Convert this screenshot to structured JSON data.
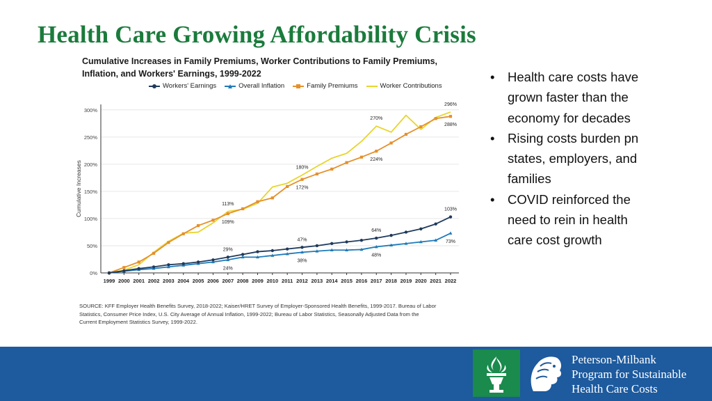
{
  "slide": {
    "title": "Health Care Growing Affordability Crisis",
    "source_lines": [
      "SOURCE: KFF Employer Health Benefits Survey, 2018-2022; Kaiser/HRET Survey of Employer-Sponsored Health Benefits, 1999-2017. Bureau of Labor",
      "Statistics, Consumer Price Index, U.S. City Average of Annual Inflation, 1999-2022; Bureau of Labor Statistics, Seasonally Adjusted Data from the",
      "Current Employment Statistics Survey, 1999-2022."
    ]
  },
  "bullets": [
    "Health care costs have grown faster than the economy for decades",
    "Rising costs burden pn states, employers, and families",
    "COVID reinforced the need to rein in health care cost growth"
  ],
  "footer": {
    "org_lines": [
      "Peterson-Milbank",
      "Program for Sustainable",
      "Health Care Costs"
    ],
    "bar_color": "#1d5a9e",
    "logo_color": "#1a8a4d"
  },
  "chart_data": {
    "type": "line",
    "title_lines": [
      "Cumulative Increases in Family Premiums, Worker Contributions to Family Premiums,",
      "Inflation, and Workers' Earnings, 1999-2022"
    ],
    "ylabel": "Cumulative Increases",
    "xlabel": "",
    "ylim": [
      0,
      310
    ],
    "y_ticks": [
      0,
      50,
      100,
      150,
      200,
      250,
      300
    ],
    "y_tick_labels": [
      "0%",
      "50%",
      "100%",
      "150%",
      "200%",
      "250%",
      "300%"
    ],
    "x": [
      "1999",
      "2000",
      "2001",
      "2002",
      "2003",
      "2004",
      "2005",
      "2006",
      "2007",
      "2008",
      "2009",
      "2010",
      "2011",
      "2012",
      "2013",
      "2014",
      "2015",
      "2016",
      "2017",
      "2018",
      "2019",
      "2020",
      "2021",
      "2022"
    ],
    "series": [
      {
        "name": "Workers' Earnings",
        "color": "#1f3a5c",
        "marker": "circle",
        "values": [
          0,
          4,
          8,
          11,
          15,
          17,
          20,
          24,
          29,
          34,
          39,
          41,
          44,
          47,
          50,
          54,
          57,
          60,
          64,
          69,
          75,
          81,
          90,
          103
        ]
      },
      {
        "name": "Overall Inflation",
        "color": "#1f7ab8",
        "marker": "triangle",
        "values": [
          0,
          3,
          6,
          8,
          11,
          14,
          17,
          20,
          24,
          29,
          29,
          32,
          35,
          38,
          40,
          42,
          42,
          43,
          48,
          51,
          54,
          57,
          60,
          73
        ]
      },
      {
        "name": "Family Premiums",
        "color": "#e5902b",
        "marker": "square",
        "values": [
          0,
          10,
          20,
          36,
          56,
          72,
          87,
          97,
          109,
          118,
          131,
          138,
          159,
          172,
          182,
          191,
          203,
          213,
          224,
          239,
          255,
          269,
          284,
          288
        ]
      },
      {
        "name": "Worker Contributions",
        "color": "#e8d42c",
        "marker": "none",
        "values": [
          0,
          5,
          15,
          38,
          58,
          73,
          75,
          92,
          113,
          117,
          128,
          158,
          165,
          180,
          196,
          211,
          220,
          242,
          270,
          259,
          290,
          264,
          286,
          296
        ]
      }
    ],
    "annotations": [
      {
        "text": "296%",
        "x": "2022",
        "y": 296,
        "pos": "above"
      },
      {
        "text": "288%",
        "x": "2022",
        "y": 288,
        "pos": "below"
      },
      {
        "text": "270%",
        "x": "2017",
        "y": 270,
        "pos": "above"
      },
      {
        "text": "224%",
        "x": "2017",
        "y": 224,
        "pos": "below"
      },
      {
        "text": "180%",
        "x": "2012",
        "y": 180,
        "pos": "above"
      },
      {
        "text": "172%",
        "x": "2012",
        "y": 172,
        "pos": "below"
      },
      {
        "text": "113%",
        "x": "2007",
        "y": 113,
        "pos": "above"
      },
      {
        "text": "109%",
        "x": "2007",
        "y": 109,
        "pos": "below"
      },
      {
        "text": "103%",
        "x": "2022",
        "y": 103,
        "pos": "above"
      },
      {
        "text": "73%",
        "x": "2022",
        "y": 73,
        "pos": "below"
      },
      {
        "text": "64%",
        "x": "2017",
        "y": 64,
        "pos": "above"
      },
      {
        "text": "48%",
        "x": "2017",
        "y": 48,
        "pos": "below"
      },
      {
        "text": "47%",
        "x": "2012",
        "y": 47,
        "pos": "above"
      },
      {
        "text": "38%",
        "x": "2012",
        "y": 38,
        "pos": "below"
      },
      {
        "text": "29%",
        "x": "2007",
        "y": 29,
        "pos": "above"
      },
      {
        "text": "24%",
        "x": "2007",
        "y": 24,
        "pos": "below"
      }
    ],
    "legend_position": "top"
  }
}
